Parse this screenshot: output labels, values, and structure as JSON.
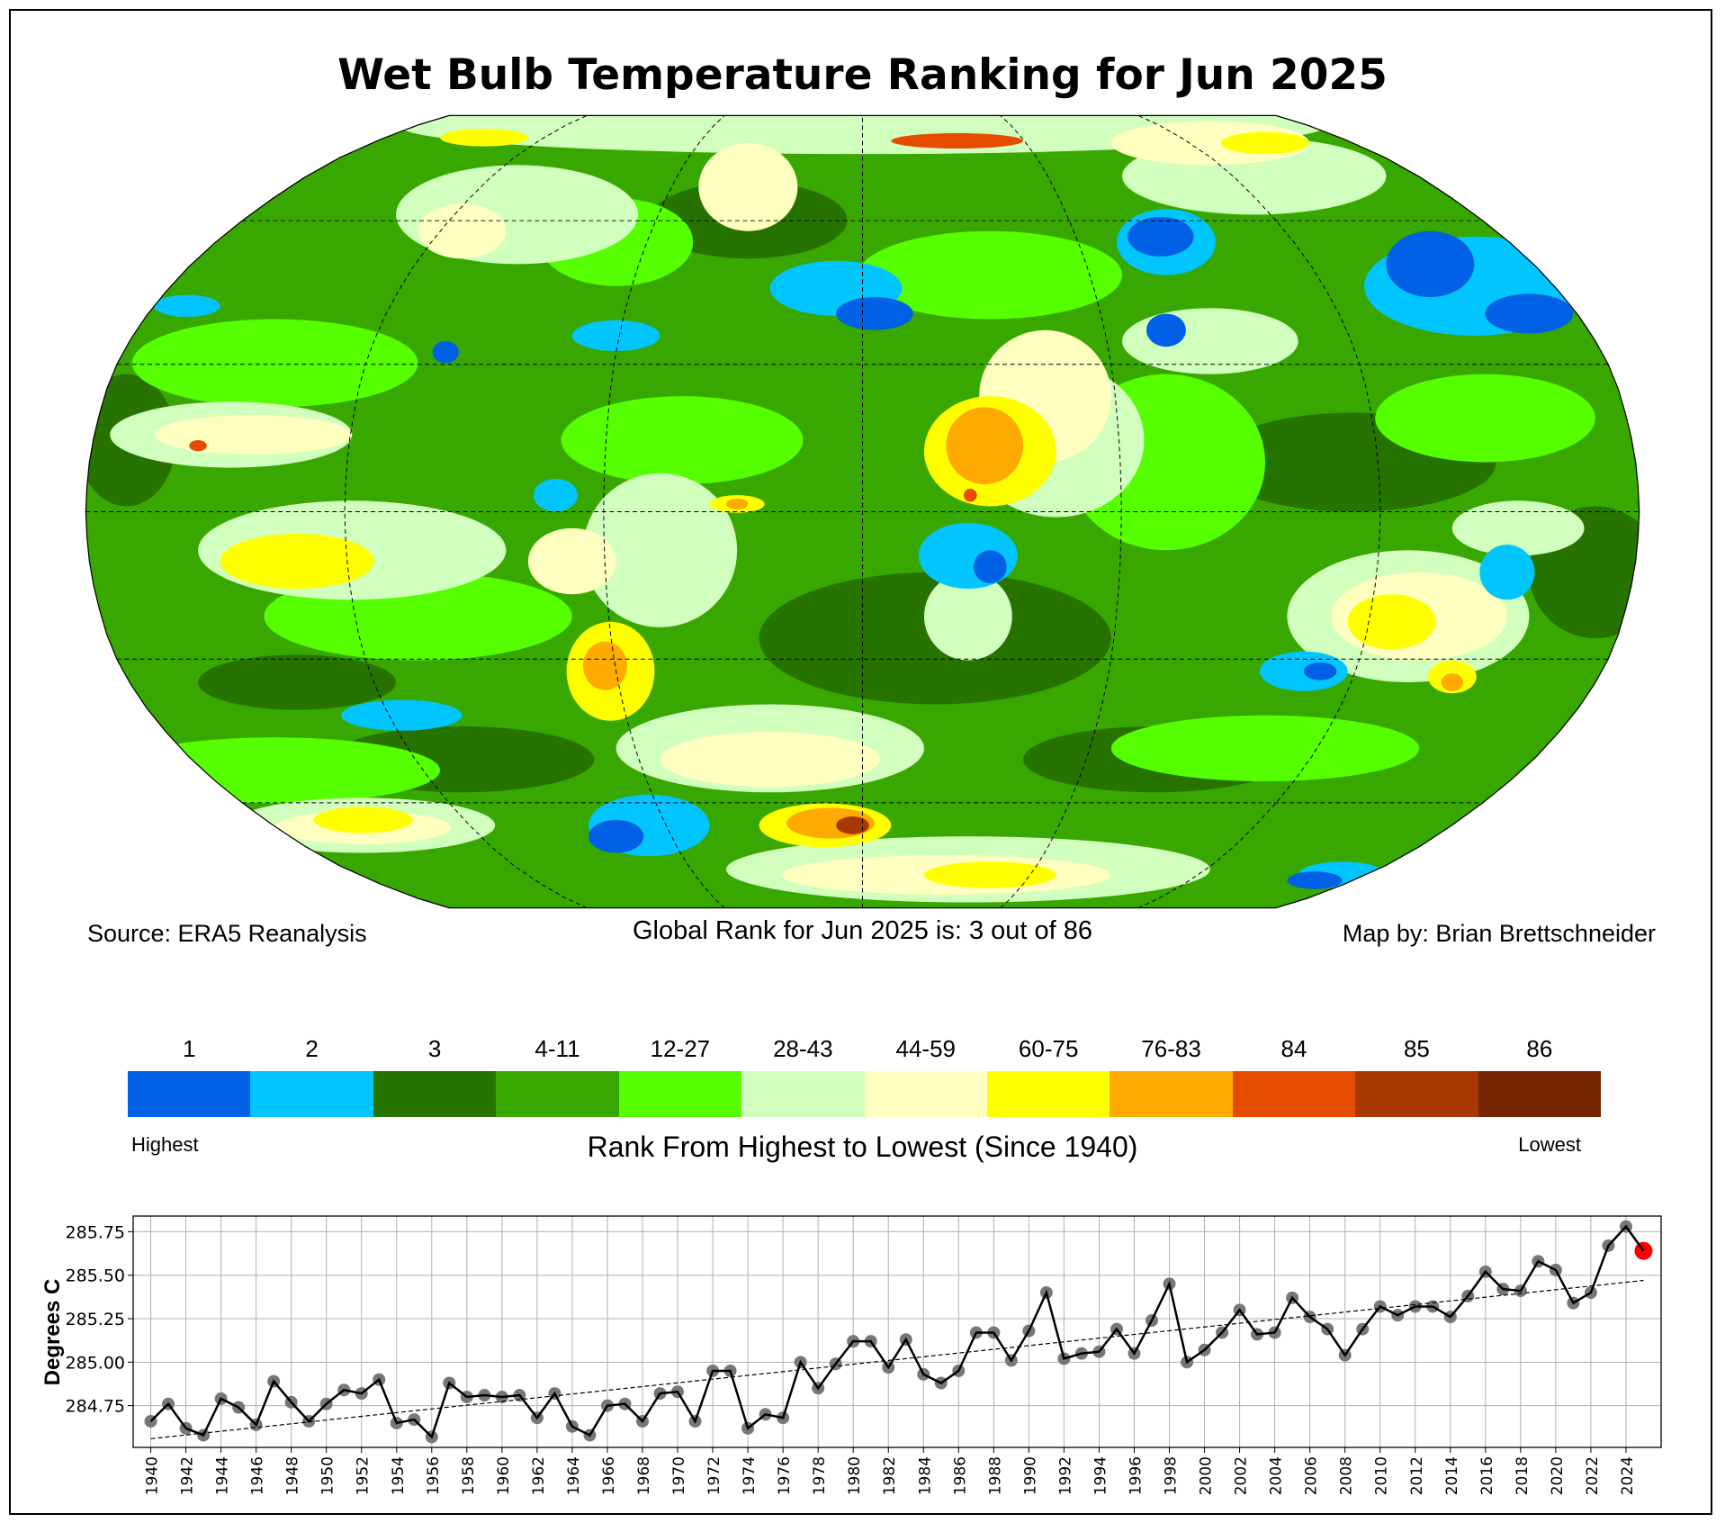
{
  "title": "Wet Bulb Temperature Ranking for Jun 2025",
  "source": "Source: ERA5 Reanalysis",
  "global_rank": "Global Rank for Jun 2025 is: 3 out of 86",
  "map_by": "Map by: Brian Brettschneider",
  "legend": {
    "labels": [
      "1",
      "2",
      "3",
      "4-11",
      "12-27",
      "28-43",
      "44-59",
      "60-75",
      "76-83",
      "84",
      "85",
      "86"
    ],
    "colors": [
      "#0060e6",
      "#00c5ff",
      "#267300",
      "#38a800",
      "#55ff00",
      "#d1ffbe",
      "#ffffc0",
      "#ffff00",
      "#ffaa00",
      "#e64c00",
      "#a83800",
      "#732600"
    ],
    "highest": "Highest",
    "lowest": "Lowest",
    "title": "Rank From Highest to Lowest (Since 1940)"
  },
  "chart_data": {
    "type": "line",
    "title": "",
    "xlabel": "",
    "ylabel": "Degrees C",
    "xlim": [
      1939,
      2026
    ],
    "ylim": [
      284.51,
      285.84
    ],
    "yticks": [
      "284.75",
      "285.00",
      "285.25",
      "285.50",
      "285.75"
    ],
    "xticks": [
      "1940",
      "1942",
      "1944",
      "1946",
      "1948",
      "1950",
      "1952",
      "1954",
      "1956",
      "1958",
      "1960",
      "1962",
      "1964",
      "1966",
      "1968",
      "1970",
      "1972",
      "1974",
      "1976",
      "1978",
      "1980",
      "1982",
      "1984",
      "1986",
      "1988",
      "1990",
      "1992",
      "1994",
      "1996",
      "1998",
      "2000",
      "2002",
      "2004",
      "2006",
      "2008",
      "2010",
      "2012",
      "2014",
      "2016",
      "2018",
      "2020",
      "2022",
      "2024"
    ],
    "grid": true,
    "x_start": 1940,
    "values": [
      284.66,
      284.76,
      284.62,
      284.58,
      284.79,
      284.74,
      284.64,
      284.89,
      284.77,
      284.66,
      284.76,
      284.84,
      284.82,
      284.9,
      284.65,
      284.67,
      284.57,
      284.88,
      284.8,
      284.81,
      284.8,
      284.81,
      284.68,
      284.82,
      284.63,
      284.58,
      284.75,
      284.76,
      284.66,
      284.82,
      284.83,
      284.66,
      284.95,
      284.95,
      284.62,
      284.7,
      284.68,
      285.0,
      284.85,
      284.99,
      285.12,
      285.12,
      284.97,
      285.13,
      284.93,
      284.88,
      284.95,
      285.17,
      285.17,
      285.01,
      285.18,
      285.4,
      285.02,
      285.05,
      285.06,
      285.19,
      285.05,
      285.24,
      285.45,
      285.0,
      285.07,
      285.17,
      285.3,
      285.16,
      285.17,
      285.37,
      285.26,
      285.19,
      285.04,
      285.19,
      285.32,
      285.27,
      285.32,
      285.32,
      285.26,
      285.38,
      285.52,
      285.42,
      285.41,
      285.58,
      285.53,
      285.34,
      285.4,
      285.67,
      285.78,
      285.64
    ],
    "trend": {
      "x": [
        1940,
        2025
      ],
      "y": [
        284.56,
        285.47
      ]
    },
    "highlight": {
      "year": 2025,
      "color": "#ff0000"
    },
    "marker_color": "#777777",
    "line_color": "#000000"
  }
}
